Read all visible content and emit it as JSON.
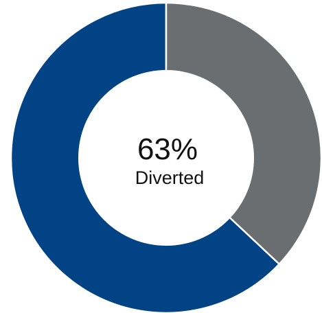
{
  "chart_data": {
    "type": "pie",
    "donut": true,
    "slices": [
      {
        "value": 63,
        "color": "#014385"
      },
      {
        "value": 37,
        "color": "#6b6e71"
      }
    ],
    "center_text": {
      "value": "63%",
      "label": "Diverted"
    },
    "start_angle_deg": 0,
    "direction": "counterclockwise-from-top",
    "separator_color": "#ffffff"
  }
}
